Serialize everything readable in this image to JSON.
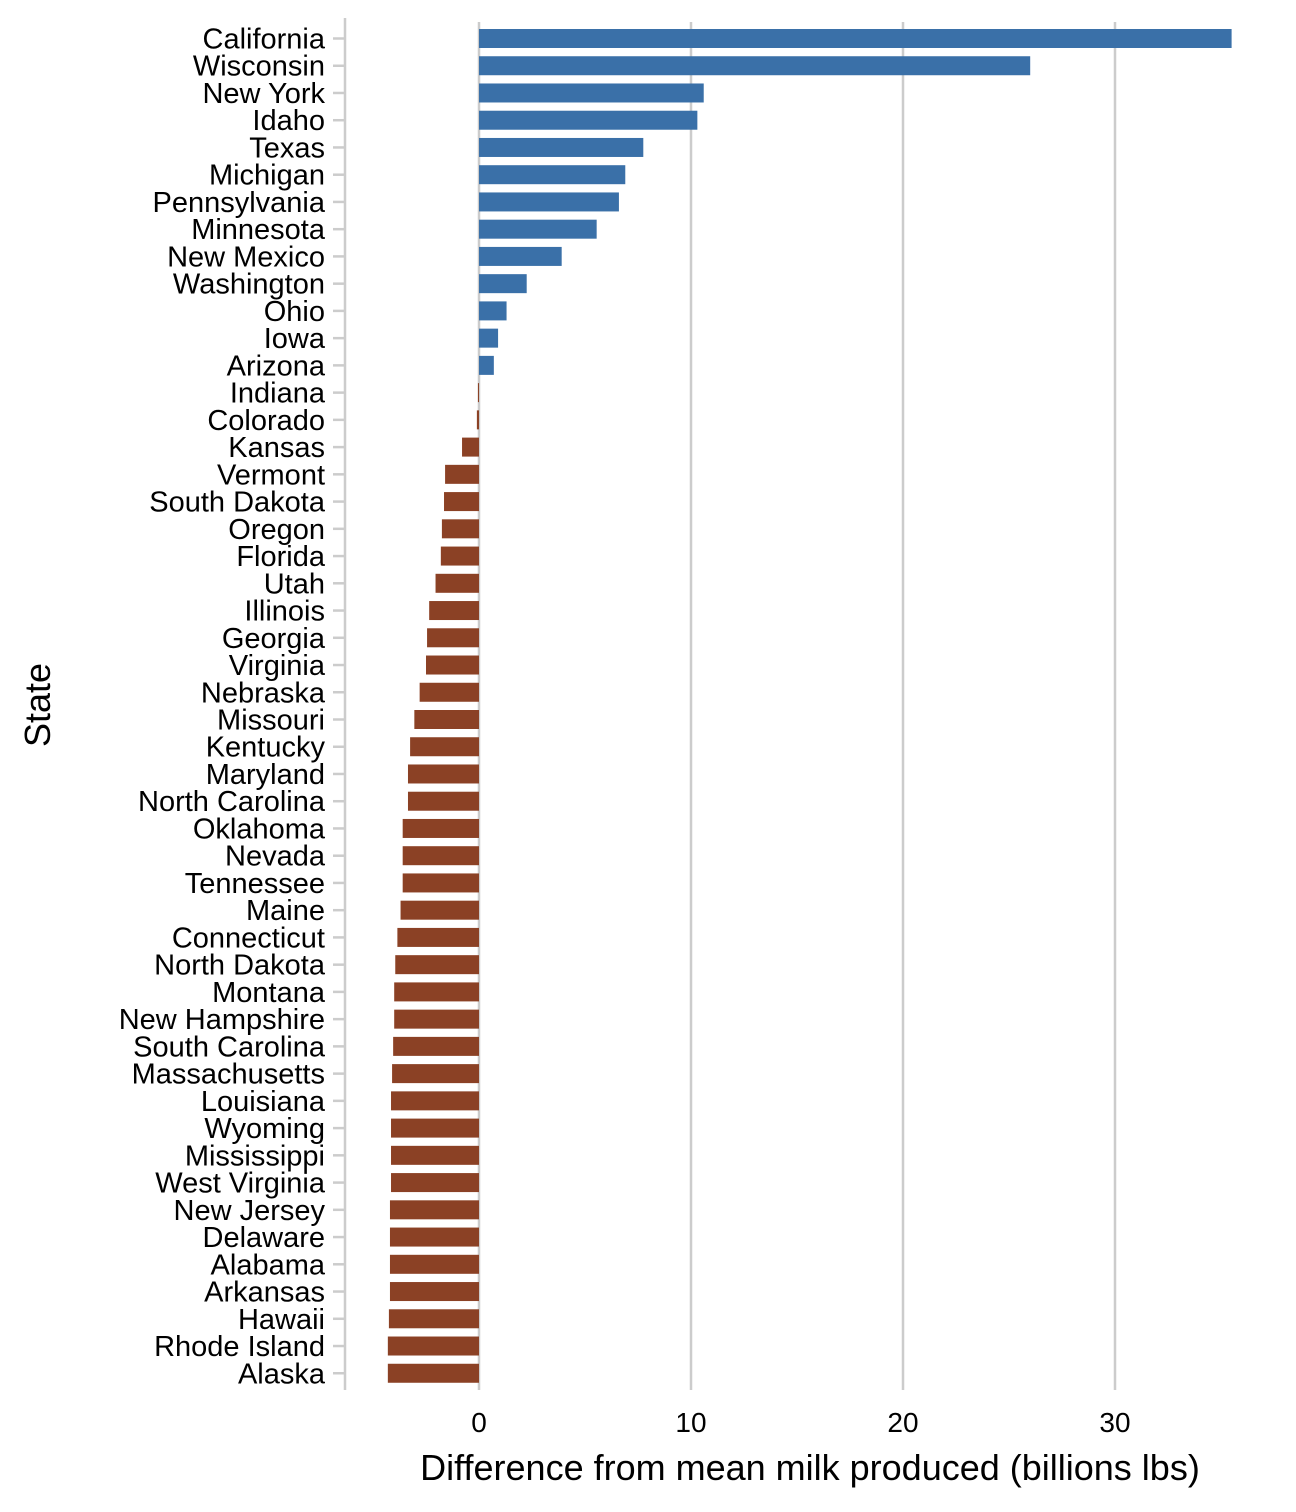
{
  "chart_data": {
    "type": "bar",
    "orientation": "horizontal",
    "xlabel": "Difference from mean milk produced (billions lbs)",
    "ylabel": "State",
    "xlim": [
      -6.3,
      36.5
    ],
    "x_ticks": [
      0,
      10,
      20,
      30
    ],
    "grid": "vertical major gridlines",
    "colors": {
      "positive": "#3a70a8",
      "negative": "#8b4125",
      "grid": "#cccccc"
    },
    "categories": [
      "California",
      "Wisconsin",
      "New York",
      "Idaho",
      "Texas",
      "Michigan",
      "Pennsylvania",
      "Minnesota",
      "New Mexico",
      "Washington",
      "Ohio",
      "Iowa",
      "Arizona",
      "Indiana",
      "Colorado",
      "Kansas",
      "Vermont",
      "South Dakota",
      "Oregon",
      "Florida",
      "Utah",
      "Illinois",
      "Georgia",
      "Virginia",
      "Nebraska",
      "Missouri",
      "Kentucky",
      "Maryland",
      "North Carolina",
      "Oklahoma",
      "Nevada",
      "Tennessee",
      "Maine",
      "Connecticut",
      "North Dakota",
      "Montana",
      "New Hampshire",
      "South Carolina",
      "Massachusetts",
      "Louisiana",
      "Wyoming",
      "Mississippi",
      "West Virginia",
      "New Jersey",
      "Delaware",
      "Alabama",
      "Arkansas",
      "Hawaii",
      "Rhode Island",
      "Alaska"
    ],
    "values": [
      35.5,
      26.0,
      10.6,
      10.3,
      7.75,
      6.9,
      6.6,
      5.55,
      3.9,
      2.25,
      1.3,
      0.9,
      0.7,
      -0.05,
      -0.1,
      -0.8,
      -1.6,
      -1.65,
      -1.75,
      -1.8,
      -2.05,
      -2.35,
      -2.45,
      -2.5,
      -2.8,
      -3.05,
      -3.25,
      -3.35,
      -3.35,
      -3.6,
      -3.6,
      -3.6,
      -3.7,
      -3.85,
      -3.95,
      -4.0,
      -4.0,
      -4.05,
      -4.1,
      -4.15,
      -4.15,
      -4.15,
      -4.15,
      -4.2,
      -4.2,
      -4.2,
      -4.2,
      -4.25,
      -4.3,
      -4.3
    ]
  }
}
